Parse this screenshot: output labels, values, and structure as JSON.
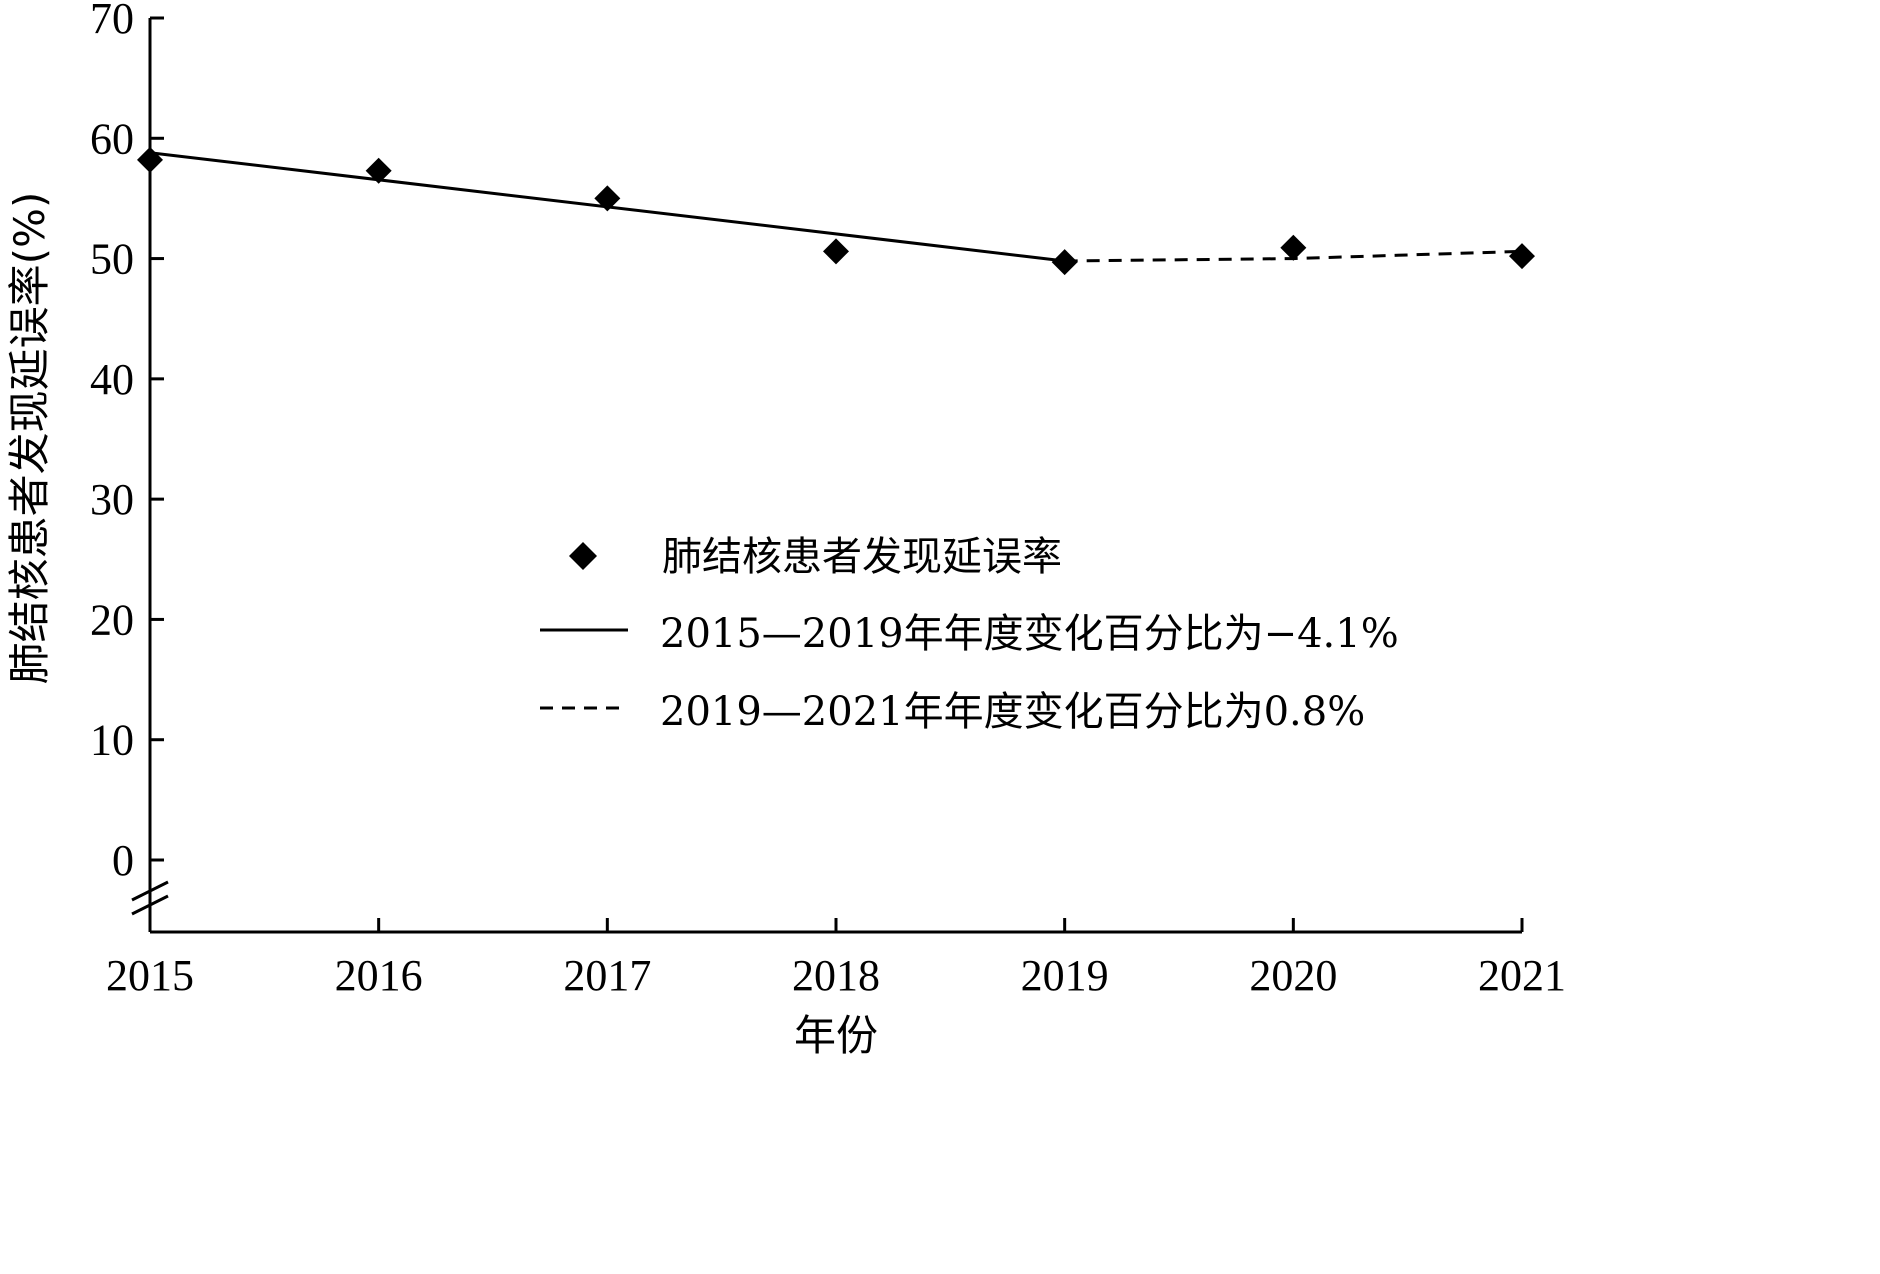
{
  "chart_data": {
    "type": "scatter",
    "xlabel": "年份",
    "ylabel": "肺结核患者发现延误率(%)",
    "xlim": [
      2015,
      2021
    ],
    "ylim": [
      0,
      70
    ],
    "x_ticks": [
      "2015",
      "2016",
      "2017",
      "2018",
      "2019",
      "2020",
      "2021"
    ],
    "y_ticks": [
      "0",
      "10",
      "20",
      "30",
      "40",
      "50",
      "60",
      "70"
    ],
    "axis_break": true,
    "grid": false,
    "legend_position": "center-right",
    "series": [
      {
        "name": "肺结核患者发现延误率",
        "kind": "points",
        "marker": "diamond",
        "x": [
          2015,
          2016,
          2017,
          2018,
          2019,
          2020,
          2021
        ],
        "y": [
          58.2,
          57.3,
          55.0,
          50.6,
          49.7,
          50.9,
          50.2
        ]
      },
      {
        "name": "2015—2019年年度变化百分比为−4.1%",
        "kind": "line",
        "style": "solid",
        "x": [
          2015,
          2019
        ],
        "y": [
          58.8,
          49.8
        ]
      },
      {
        "name": "2019—2021年年度变化百分比为0.8%",
        "kind": "line",
        "style": "dashed",
        "x": [
          2019,
          2020,
          2021
        ],
        "y": [
          49.8,
          50.0,
          50.6
        ]
      }
    ],
    "colors": {
      "ink": "#000000",
      "background": "#ffffff"
    }
  }
}
